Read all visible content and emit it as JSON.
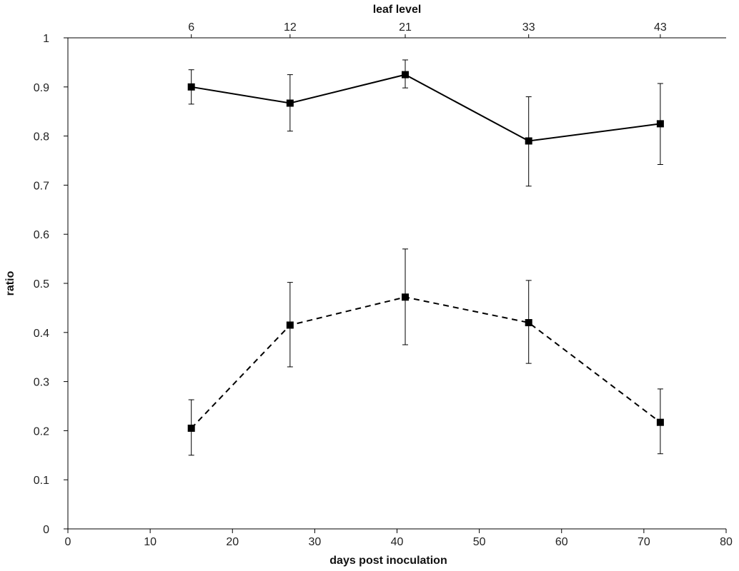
{
  "chart_data": {
    "type": "line",
    "xlabel": "days post inoculation",
    "ylabel": "ratio",
    "x2label": "leaf level",
    "xlim": [
      0,
      80
    ],
    "ylim": [
      0,
      1
    ],
    "x_ticks": [
      0,
      10,
      20,
      30,
      40,
      50,
      60,
      70,
      80
    ],
    "y_ticks": [
      0,
      0.1,
      0.2,
      0.3,
      0.4,
      0.5,
      0.6,
      0.7,
      0.8,
      0.9,
      1
    ],
    "top_ticks": [
      {
        "x": 15,
        "label": "6"
      },
      {
        "x": 27,
        "label": "12"
      },
      {
        "x": 41,
        "label": "21"
      },
      {
        "x": 56,
        "label": "33"
      },
      {
        "x": 72,
        "label": "43"
      }
    ],
    "grid": false,
    "series": [
      {
        "style": "solid",
        "marker": "square",
        "points": [
          {
            "x": 15,
            "y": 0.9,
            "err_low": 0.865,
            "err_high": 0.935
          },
          {
            "x": 27,
            "y": 0.867,
            "err_low": 0.81,
            "err_high": 0.925
          },
          {
            "x": 41,
            "y": 0.925,
            "err_low": 0.898,
            "err_high": 0.955
          },
          {
            "x": 56,
            "y": 0.79,
            "err_low": 0.698,
            "err_high": 0.88
          },
          {
            "x": 72,
            "y": 0.825,
            "err_low": 0.742,
            "err_high": 0.907
          }
        ]
      },
      {
        "style": "dashed",
        "marker": "square",
        "points": [
          {
            "x": 15,
            "y": 0.205,
            "err_low": 0.15,
            "err_high": 0.263
          },
          {
            "x": 27,
            "y": 0.415,
            "err_low": 0.33,
            "err_high": 0.502
          },
          {
            "x": 41,
            "y": 0.472,
            "err_low": 0.375,
            "err_high": 0.57
          },
          {
            "x": 56,
            "y": 0.42,
            "err_low": 0.337,
            "err_high": 0.506
          },
          {
            "x": 72,
            "y": 0.217,
            "err_low": 0.153,
            "err_high": 0.285
          }
        ]
      }
    ]
  }
}
